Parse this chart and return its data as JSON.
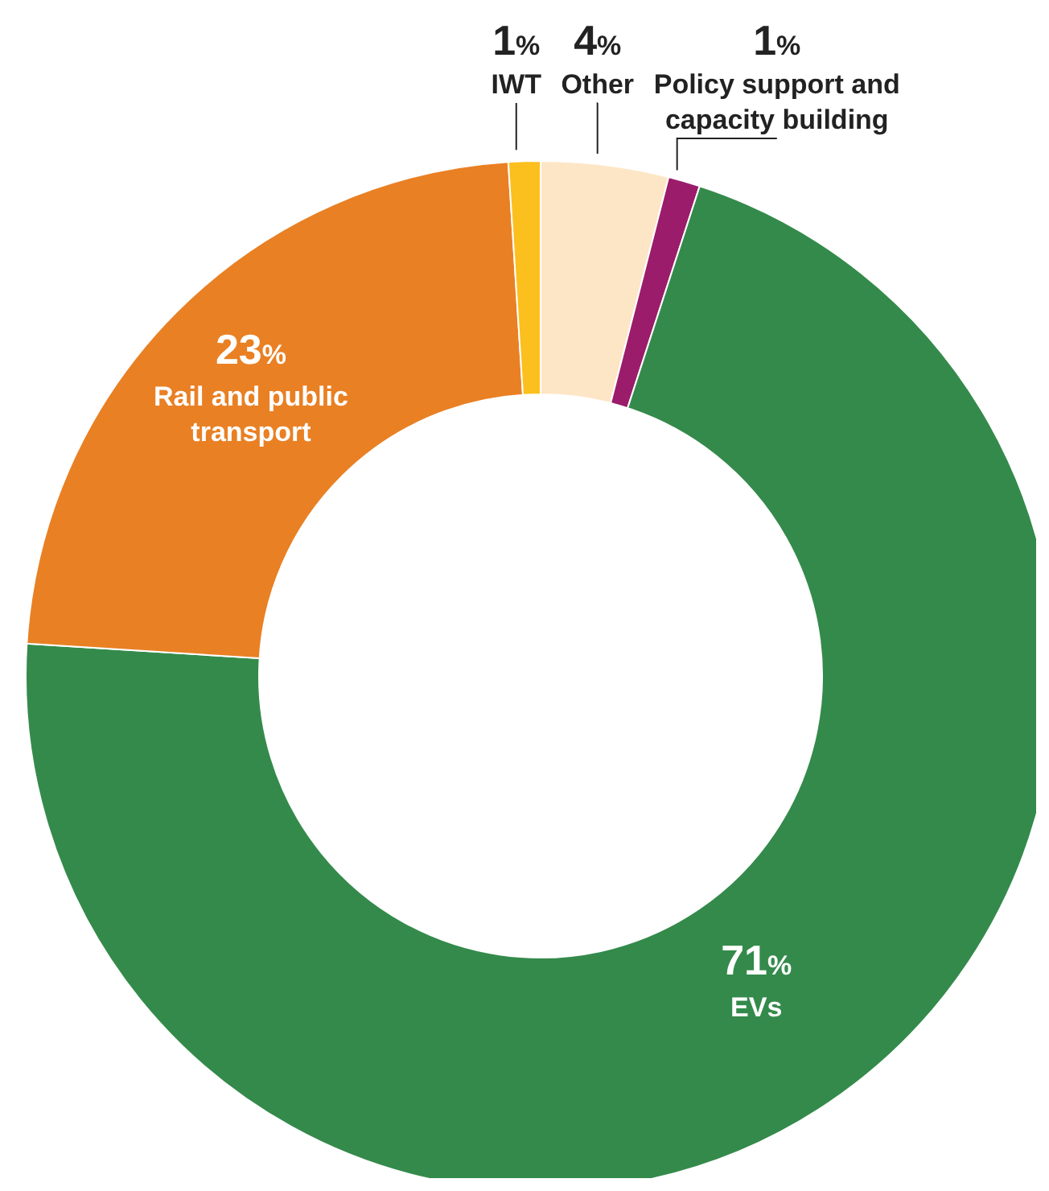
{
  "chart_data": {
    "type": "donut",
    "categories": [
      "Other",
      "Policy support and capacity building",
      "EVs",
      "Rail and public transport",
      "IWT"
    ],
    "values": [
      4,
      1,
      71,
      23,
      1
    ],
    "value_labels": [
      "4%",
      "1%",
      "71%",
      "23%",
      "1%"
    ],
    "colors": [
      "#fde6c6",
      "#9b1c6b",
      "#348a4b",
      "#e98024",
      "#fbbf1e"
    ]
  }
}
